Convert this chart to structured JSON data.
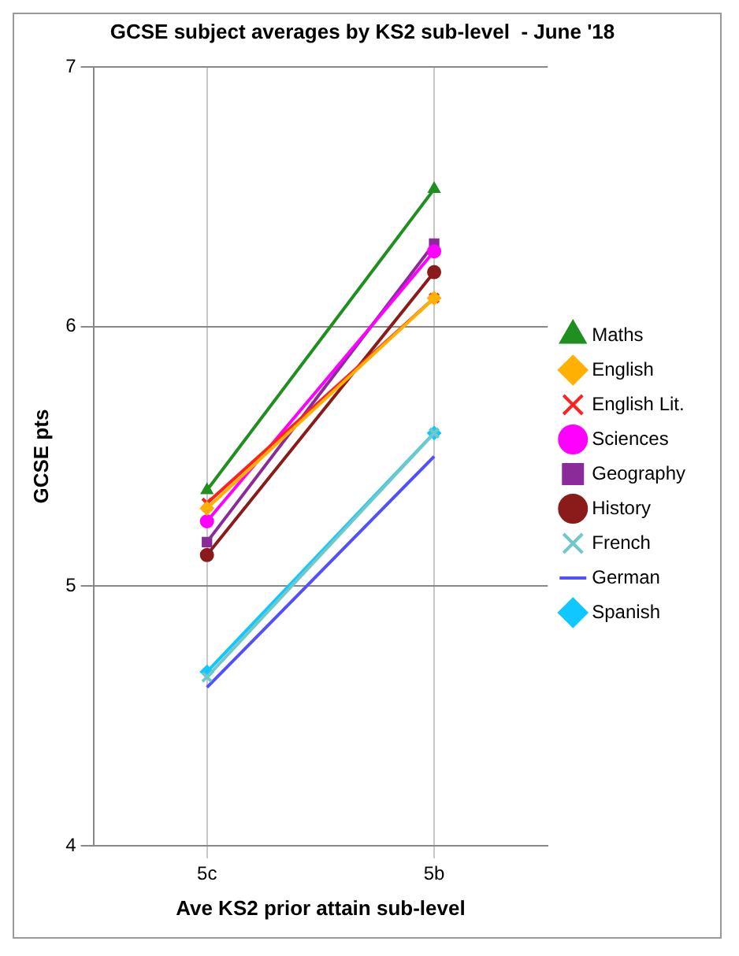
{
  "chart_data": {
    "type": "line",
    "title": "GCSE subject averages by KS2 sub-level  - June '18",
    "xlabel": "Ave KS2 prior attain sub-level",
    "ylabel": "GCSE pts",
    "categories": [
      "5c",
      "5b"
    ],
    "ylim": [
      4,
      7
    ],
    "yticks": [
      4,
      5,
      6,
      7
    ],
    "grid": true,
    "legend": "right",
    "line_style": "solid",
    "series": [
      {
        "name": "Maths",
        "color": "#1f8f1f",
        "marker": "triangle",
        "values": [
          5.37,
          6.53
        ]
      },
      {
        "name": "English",
        "color": "#ffb000",
        "marker": "diamond",
        "values": [
          5.3,
          6.11
        ]
      },
      {
        "name": "English Lit.",
        "color": "#ff2020",
        "marker": "cross",
        "values": [
          5.32,
          6.11
        ]
      },
      {
        "name": "Sciences",
        "color": "#ff00ff",
        "marker": "circle",
        "values": [
          5.25,
          6.29
        ]
      },
      {
        "name": "Geography",
        "color": "#8b2a9b",
        "marker": "square",
        "values": [
          5.17,
          6.32
        ]
      },
      {
        "name": "History",
        "color": "#8b1a1a",
        "marker": "circle",
        "values": [
          5.12,
          6.21
        ]
      },
      {
        "name": "French",
        "color": "#70c8c8",
        "marker": "cross",
        "values": [
          4.65,
          5.59
        ]
      },
      {
        "name": "German",
        "color": "#5050ff",
        "marker": "none",
        "values": [
          4.61,
          5.5
        ]
      },
      {
        "name": "Spanish",
        "color": "#10c8ff",
        "marker": "diamond",
        "values": [
          4.67,
          5.59
        ]
      }
    ]
  }
}
